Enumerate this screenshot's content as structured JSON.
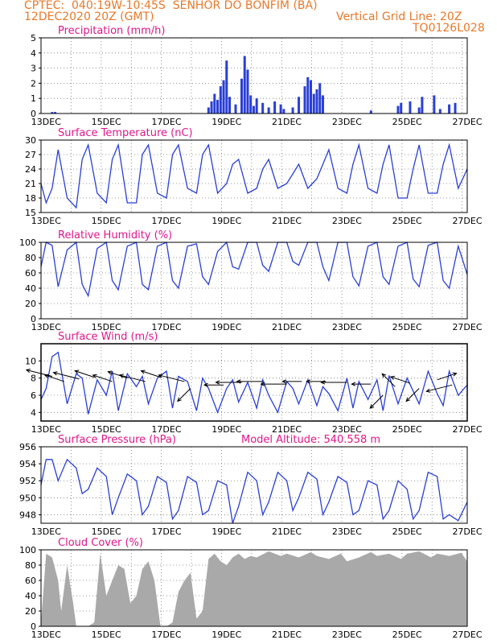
{
  "header": {
    "line1": "CPTEC:  040:19W-10:45S  SENHOR DO BONFIM (BA)",
    "line2": "12DEC2020 20Z (GMT)",
    "vgrid": "Vertical Grid Line: 20Z",
    "code": "TQ0126L028"
  },
  "x_axis": {
    "start_day": 12.83,
    "end_day": 27.0,
    "tick_labels": [
      "13DEC",
      "15DEC",
      "17DEC",
      "19DEC",
      "21DEC",
      "23DEC",
      "25DEC",
      "27DEC"
    ],
    "tick_days": [
      13,
      15,
      17,
      19,
      21,
      23,
      25,
      27
    ],
    "grid_days": [
      12.83,
      13.83,
      14.83,
      15.83,
      16.83,
      17.83,
      18.83,
      19.83,
      20.83,
      21.83,
      22.83,
      23.83,
      24.83,
      25.83,
      26.83
    ]
  },
  "colors": {
    "line": "#2a3fd6",
    "bars": "#2a3fd6",
    "cloud": "#a9a9a9",
    "title": "#e0188a",
    "header": "#e8792a"
  },
  "chart_data": [
    {
      "id": "precip",
      "type": "bar",
      "title": "Precipitation (mm/h)",
      "ylim": [
        0,
        5
      ],
      "yticks": [
        0,
        1,
        2,
        3,
        4,
        5
      ],
      "x": [
        13.2,
        13.3,
        18.4,
        18.5,
        18.6,
        18.7,
        18.8,
        18.9,
        19.0,
        19.1,
        19.3,
        19.5,
        19.6,
        19.7,
        19.8,
        19.9,
        20.0,
        20.2,
        20.4,
        20.6,
        20.8,
        20.9,
        21.2,
        21.4,
        21.6,
        21.7,
        21.8,
        21.9,
        22.0,
        22.1,
        22.2,
        23.8,
        24.7,
        24.8,
        25.1,
        25.4,
        25.5,
        25.9,
        26.1,
        26.4,
        26.6
      ],
      "values": [
        0.1,
        0.1,
        0.4,
        0.8,
        1.3,
        0.9,
        1.8,
        2.2,
        3.5,
        1.1,
        0.6,
        2.3,
        3.8,
        2.9,
        1.2,
        0.5,
        1.0,
        0.7,
        0.4,
        0.8,
        0.6,
        0.3,
        0.4,
        1.1,
        1.8,
        2.4,
        2.2,
        1.3,
        1.6,
        2.0,
        1.2,
        0.2,
        0.5,
        0.7,
        0.8,
        0.4,
        1.1,
        1.2,
        0.3,
        0.6,
        0.7
      ]
    },
    {
      "id": "temp",
      "type": "line",
      "title": "Surface Temperature (nC)",
      "ylim": [
        15,
        30
      ],
      "yticks": [
        15,
        18,
        21,
        24,
        27,
        30
      ],
      "x": [
        12.83,
        13.0,
        13.2,
        13.4,
        13.7,
        14.0,
        14.2,
        14.4,
        14.7,
        15.0,
        15.2,
        15.4,
        15.7,
        16.0,
        16.2,
        16.4,
        16.7,
        17.0,
        17.2,
        17.4,
        17.7,
        18.0,
        18.2,
        18.4,
        18.7,
        19.0,
        19.2,
        19.4,
        19.7,
        20.0,
        20.2,
        20.4,
        20.7,
        21.0,
        21.2,
        21.4,
        21.7,
        22.0,
        22.2,
        22.4,
        22.7,
        23.0,
        23.2,
        23.4,
        23.7,
        24.0,
        24.2,
        24.4,
        24.7,
        25.0,
        25.2,
        25.4,
        25.7,
        26.0,
        26.2,
        26.4,
        26.7,
        27.0
      ],
      "values": [
        21,
        17,
        20,
        28,
        18,
        16,
        26,
        29,
        19,
        17,
        26,
        29,
        17,
        17,
        27,
        29,
        19,
        18,
        27,
        29,
        20,
        19,
        27,
        29,
        19,
        21,
        25,
        26,
        19,
        20,
        24,
        26,
        20,
        21,
        23,
        25,
        20,
        22,
        25,
        28,
        20,
        19,
        25,
        29,
        20,
        19,
        25,
        29,
        18,
        18,
        24,
        29,
        19,
        19,
        25,
        29,
        20,
        24
      ]
    },
    {
      "id": "rh",
      "type": "line",
      "title": "Relative Humidity (%)",
      "ylim": [
        0,
        100
      ],
      "yticks": [
        0,
        20,
        40,
        60,
        80,
        100
      ],
      "x": [
        12.83,
        13.0,
        13.2,
        13.4,
        13.7,
        14.0,
        14.2,
        14.4,
        14.7,
        15.0,
        15.2,
        15.4,
        15.7,
        16.0,
        16.2,
        16.4,
        16.7,
        17.0,
        17.2,
        17.4,
        17.7,
        18.0,
        18.2,
        18.4,
        18.7,
        19.0,
        19.2,
        19.4,
        19.7,
        20.0,
        20.2,
        20.4,
        20.7,
        21.0,
        21.2,
        21.4,
        21.7,
        22.0,
        22.2,
        22.4,
        22.7,
        23.0,
        23.2,
        23.4,
        23.7,
        24.0,
        24.2,
        24.4,
        24.7,
        25.0,
        25.2,
        25.4,
        25.7,
        26.0,
        26.2,
        26.4,
        26.7,
        27.0
      ],
      "values": [
        68,
        100,
        96,
        42,
        90,
        100,
        45,
        30,
        92,
        100,
        50,
        38,
        95,
        100,
        45,
        38,
        95,
        100,
        50,
        40,
        95,
        98,
        55,
        45,
        88,
        100,
        68,
        65,
        100,
        100,
        70,
        62,
        100,
        100,
        75,
        70,
        100,
        100,
        68,
        50,
        100,
        100,
        55,
        43,
        95,
        100,
        55,
        45,
        95,
        100,
        52,
        42,
        96,
        100,
        50,
        40,
        95,
        58
      ]
    },
    {
      "id": "wind",
      "type": "line",
      "title": "Surface Wind (m/s)",
      "ylim": [
        3,
        12
      ],
      "yticks": [
        4,
        6,
        8,
        10
      ],
      "x": [
        12.83,
        13.0,
        13.2,
        13.4,
        13.7,
        14.0,
        14.2,
        14.4,
        14.7,
        15.0,
        15.2,
        15.4,
        15.7,
        16.0,
        16.2,
        16.4,
        16.7,
        17.0,
        17.2,
        17.4,
        17.7,
        18.0,
        18.2,
        18.4,
        18.7,
        19.0,
        19.2,
        19.4,
        19.7,
        20.0,
        20.2,
        20.4,
        20.7,
        21.0,
        21.2,
        21.4,
        21.7,
        22.0,
        22.2,
        22.4,
        22.7,
        23.0,
        23.2,
        23.4,
        23.7,
        24.0,
        24.2,
        24.4,
        24.7,
        25.0,
        25.2,
        25.4,
        25.7,
        26.0,
        26.2,
        26.4,
        26.7,
        27.0
      ],
      "values": [
        5.5,
        6.8,
        10.5,
        11.0,
        5.0,
        8.5,
        8.0,
        3.8,
        7.8,
        6.0,
        8.8,
        4.2,
        8.5,
        7.0,
        8.2,
        5.0,
        8.0,
        8.8,
        4.5,
        8.2,
        7.6,
        4.2,
        8.0,
        6.8,
        4.0,
        6.8,
        7.8,
        5.2,
        7.5,
        4.5,
        7.8,
        6.0,
        4.0,
        7.6,
        6.8,
        5.0,
        7.8,
        4.8,
        7.0,
        6.2,
        4.2,
        8.0,
        4.5,
        7.6,
        5.5,
        7.8,
        4.2,
        8.3,
        5.0,
        8.0,
        6.5,
        5.0,
        8.8,
        6.2,
        4.8,
        8.8,
        6.0,
        7.2
      ],
      "vectors": [
        {
          "x": 13.2,
          "y": 8.2,
          "u": -4,
          "v": 1
        },
        {
          "x": 13.6,
          "y": 7.6,
          "u": -3,
          "v": 1
        },
        {
          "x": 14.1,
          "y": 7.9,
          "u": -4,
          "v": 1
        },
        {
          "x": 14.6,
          "y": 8.1,
          "u": -3,
          "v": 1
        },
        {
          "x": 15.2,
          "y": 7.6,
          "u": -3,
          "v": 1
        },
        {
          "x": 15.7,
          "y": 8.0,
          "u": -3,
          "v": 1
        },
        {
          "x": 16.3,
          "y": 7.6,
          "u": -4,
          "v": 1
        },
        {
          "x": 16.8,
          "y": 8.1,
          "u": -3,
          "v": 1
        },
        {
          "x": 17.6,
          "y": 7.6,
          "u": -4,
          "v": 1
        },
        {
          "x": 17.8,
          "y": 6.8,
          "u": -2,
          "v": -2
        },
        {
          "x": 18.9,
          "y": 7.2,
          "u": -3,
          "v": 0
        },
        {
          "x": 19.5,
          "y": 7.5,
          "u": -4,
          "v": 0
        },
        {
          "x": 20.2,
          "y": 7.6,
          "u": -4,
          "v": 0
        },
        {
          "x": 21.0,
          "y": 7.3,
          "u": -4,
          "v": 0
        },
        {
          "x": 21.5,
          "y": 7.6,
          "u": -3,
          "v": 0
        },
        {
          "x": 22.3,
          "y": 7.6,
          "u": -3,
          "v": 0
        },
        {
          "x": 23.0,
          "y": 7.5,
          "u": -4,
          "v": 0
        },
        {
          "x": 23.8,
          "y": 7.3,
          "u": -3,
          "v": 0
        },
        {
          "x": 24.2,
          "y": 6.0,
          "u": -2,
          "v": -2
        },
        {
          "x": 24.6,
          "y": 7.0,
          "u": -2,
          "v": 2
        },
        {
          "x": 25.1,
          "y": 7.4,
          "u": -3,
          "v": 1
        },
        {
          "x": 25.4,
          "y": 6.8,
          "u": -2,
          "v": -2
        },
        {
          "x": 26.0,
          "y": 7.8,
          "u": 3,
          "v": 1
        },
        {
          "x": 26.5,
          "y": 7.2,
          "u": -4,
          "v": -1
        }
      ]
    },
    {
      "id": "pres",
      "type": "line",
      "title": "Surface Pressure (hPa)",
      "ylim": [
        947,
        956
      ],
      "yticks": [
        948,
        950,
        952,
        954,
        956
      ],
      "x": [
        12.83,
        13.0,
        13.2,
        13.4,
        13.7,
        14.0,
        14.2,
        14.4,
        14.7,
        15.0,
        15.2,
        15.4,
        15.7,
        16.0,
        16.2,
        16.4,
        16.7,
        17.0,
        17.2,
        17.4,
        17.7,
        18.0,
        18.2,
        18.4,
        18.7,
        19.0,
        19.2,
        19.4,
        19.7,
        20.0,
        20.2,
        20.4,
        20.7,
        21.0,
        21.2,
        21.4,
        21.7,
        22.0,
        22.2,
        22.4,
        22.7,
        23.0,
        23.2,
        23.4,
        23.7,
        24.0,
        24.2,
        24.4,
        24.7,
        25.0,
        25.2,
        25.4,
        25.7,
        26.0,
        26.2,
        26.4,
        26.7,
        27.0
      ],
      "values": [
        951.5,
        954.5,
        954.5,
        952.0,
        954.5,
        953.5,
        950.5,
        951.0,
        953.5,
        952.5,
        948.0,
        950.0,
        952.8,
        952.0,
        948.0,
        949.0,
        952.5,
        951.8,
        947.5,
        948.5,
        952.5,
        951.8,
        948.0,
        948.5,
        952.0,
        951.5,
        947.0,
        949.0,
        953.0,
        952.0,
        948.0,
        949.5,
        953.0,
        952.0,
        948.5,
        950.0,
        953.0,
        952.2,
        948.0,
        949.5,
        952.5,
        951.8,
        948.0,
        948.5,
        952.0,
        951.5,
        947.5,
        948.5,
        952.0,
        951.0,
        947.5,
        948.5,
        953.0,
        952.5,
        947.5,
        948.0,
        947.3,
        949.5
      ]
    },
    {
      "id": "cloud",
      "type": "area",
      "title": "Cloud Cover (%)",
      "ylim": [
        0,
        100
      ],
      "yticks": [
        0,
        20,
        40,
        60,
        80,
        100
      ],
      "x": [
        12.83,
        13.0,
        13.2,
        13.4,
        13.5,
        13.7,
        13.9,
        14.0,
        14.2,
        14.4,
        14.6,
        14.8,
        15.0,
        15.2,
        15.4,
        15.6,
        15.8,
        16.0,
        16.2,
        16.4,
        16.6,
        16.8,
        17.0,
        17.2,
        17.4,
        17.6,
        17.8,
        18.0,
        18.2,
        18.4,
        18.6,
        18.8,
        19.0,
        19.2,
        19.4,
        19.6,
        19.8,
        20.0,
        20.4,
        20.8,
        21.0,
        21.4,
        21.8,
        22.0,
        22.4,
        22.8,
        23.0,
        23.4,
        23.8,
        24.0,
        24.4,
        24.8,
        25.0,
        25.4,
        25.8,
        26.0,
        26.4,
        26.8,
        27.0
      ],
      "values": [
        5,
        95,
        90,
        60,
        20,
        80,
        30,
        0,
        0,
        0,
        5,
        95,
        40,
        60,
        80,
        75,
        30,
        40,
        75,
        85,
        60,
        0,
        0,
        5,
        45,
        60,
        70,
        10,
        20,
        88,
        95,
        85,
        80,
        90,
        95,
        88,
        92,
        90,
        98,
        92,
        95,
        90,
        97,
        92,
        88,
        95,
        85,
        90,
        97,
        92,
        95,
        88,
        95,
        98,
        90,
        95,
        92,
        96,
        85
      ]
    }
  ],
  "pressure_extra": {
    "label": "Model Altitude: 540.558 m"
  }
}
